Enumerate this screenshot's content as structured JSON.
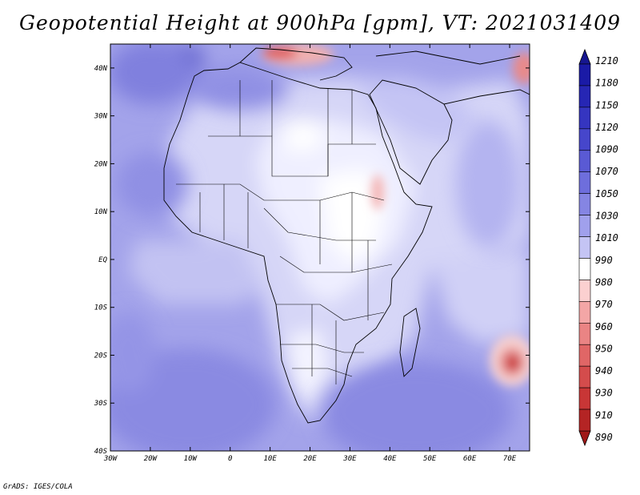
{
  "title": "Geopotential Height at 900hPa [gpm], VT: 2021031409",
  "credit": "GrADS: IGES/COLA",
  "map": {
    "lat_labels": [
      "40N",
      "30N",
      "20N",
      "10N",
      "EQ",
      "10S",
      "20S",
      "30S",
      "40S"
    ],
    "lat_values": [
      40,
      30,
      20,
      10,
      0,
      -10,
      -20,
      -30,
      -40
    ],
    "lon_labels": [
      "30W",
      "20W",
      "10W",
      "0",
      "10E",
      "20E",
      "30E",
      "40E",
      "50E",
      "60E",
      "70E"
    ],
    "lon_values": [
      -30,
      -20,
      -10,
      0,
      10,
      20,
      30,
      40,
      50,
      60,
      70
    ],
    "lon_range": [
      -30,
      75
    ],
    "lat_range": [
      -40,
      45
    ]
  },
  "colorbar": {
    "labels": [
      "1210",
      "1180",
      "1150",
      "1120",
      "1090",
      "1070",
      "1050",
      "1030",
      "1010",
      "990",
      "980",
      "970",
      "960",
      "950",
      "940",
      "930",
      "910",
      "890"
    ],
    "colors": [
      "#1a1aa6",
      "#2626b4",
      "#3535c0",
      "#4646cb",
      "#5a5ad4",
      "#6e6edc",
      "#8585e3",
      "#a0a0ec",
      "#c4c4f4",
      "#ffffff",
      "#fbd0d0",
      "#f3a6a6",
      "#ea8484",
      "#e06666",
      "#d44c4c",
      "#c83636",
      "#b42424"
    ],
    "top_color": "#161690",
    "bottom_color": "#a01818"
  }
}
